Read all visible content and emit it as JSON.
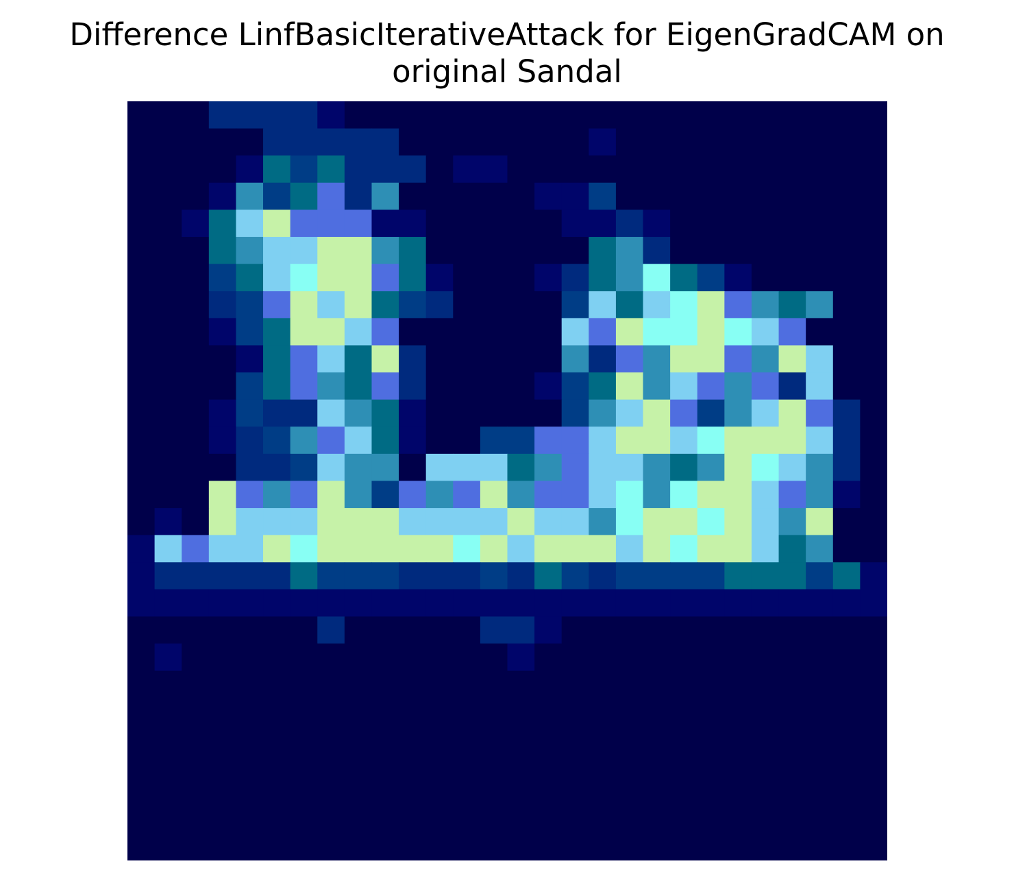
{
  "chart_data": {
    "type": "heatmap",
    "title_lines": [
      "Difference LinfBasicIterativeAttack for EigenGradCAM on",
      "original Sandal"
    ],
    "rows": 28,
    "cols": 28,
    "axes_visible": false,
    "grid": false,
    "legend": "none",
    "colormap": "overlay of jet heat map on dark image",
    "values": [
      "0002222100000000000000000000",
      "0000022222000000010000000000",
      "0000143422201100000000000000",
      "0001534625000001130000000000",
      "0014786661100000112100000000",
      "0004577885400000045200000000",
      "0003479886410001245943100000",
      "0002368784320000374798654500",
      "0001348876000000768998976000",
      "0000146748200000526588658700",
      "0000346546200001348576562700",
      "0001322754100000357863578620",
      "0001235674100336678879888720",
      "0000223755077745677545897520",
      "0008656853656856679598876510",
      "0108777888777787759889875800",
      "1767789888889878887898874500",
      "1222224333222324323333444341",
      "1111111111111111111111111111",
      "0000000200000221000000000000",
      "0100000000000010000000000000",
      "0000000000000000000000000000",
      "0000000000000000000000000000",
      "0000000000000000000000000000",
      "0000000000000000000000000000",
      "0000000000000000000000000000",
      "0000000000000000000000000000",
      "0000000000000000000000000000"
    ],
    "palette": [
      "#00004a",
      "#00056a",
      "#002a7e",
      "#003d86",
      "#006b84",
      "#2e8fb5",
      "#4f6ee0",
      "#7fd0f2",
      "#c6f2a8",
      "#88fff4"
    ]
  }
}
